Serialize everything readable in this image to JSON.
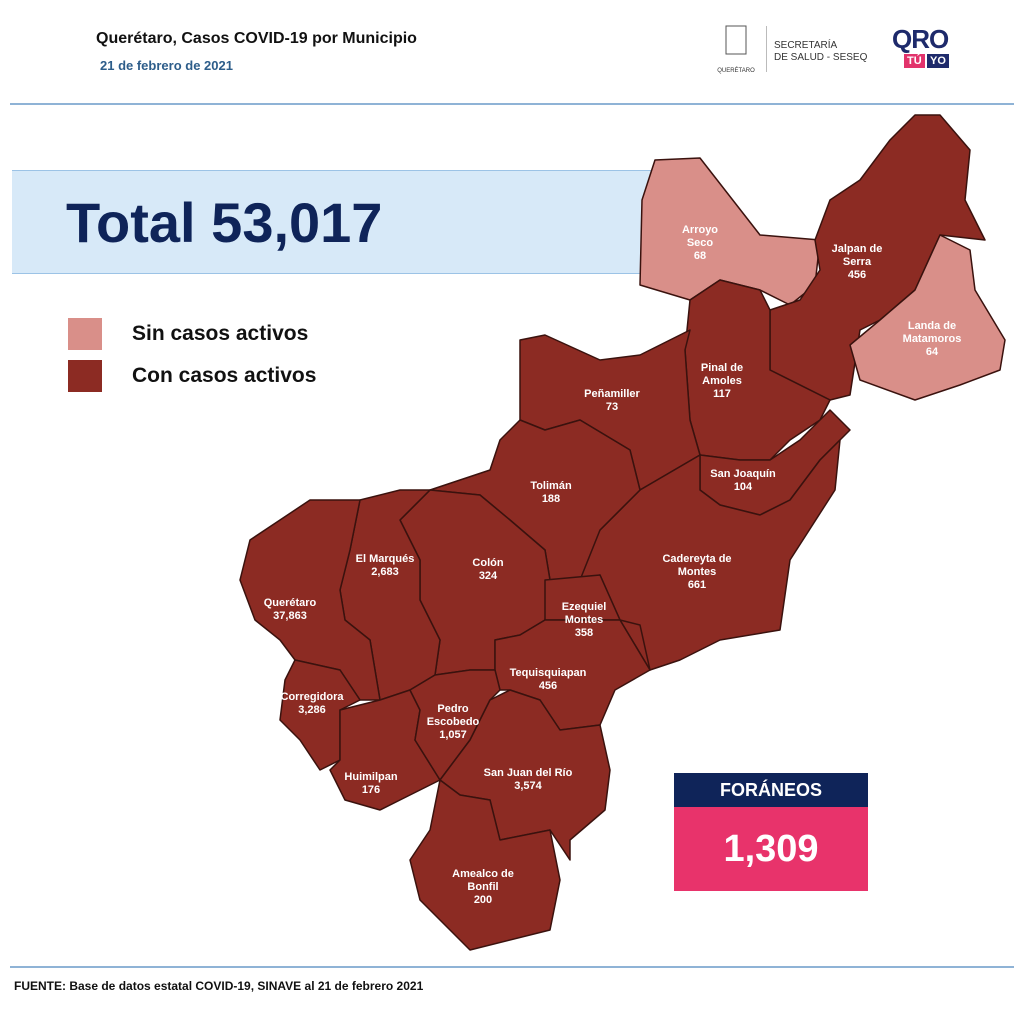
{
  "header": {
    "title": "Querétaro, Casos COVID-19 por Municipio",
    "date": "21 de febrero de 2021",
    "logo_state": "QUERÉTARO",
    "logo_secretaria": [
      "SECRETARÍA",
      "DE SALUD - SESEQ"
    ],
    "logo_qro": "QRO",
    "logo_tu": "TÚ",
    "logo_yo": "YO"
  },
  "total": "Total 53,017",
  "legend": [
    "Sin casos activos",
    "Con casos activos"
  ],
  "municipalities": [
    {
      "name": "Arroyo Seco",
      "value": "68"
    },
    {
      "name": "Jalpan de Serra",
      "value": "456"
    },
    {
      "name": "Landa de Matamoros",
      "value": "64"
    },
    {
      "name": "Pinal de Amoles",
      "value": "117"
    },
    {
      "name": "Peñamiller",
      "value": "73"
    },
    {
      "name": "San Joaquín",
      "value": "104"
    },
    {
      "name": "Tolimán",
      "value": "188"
    },
    {
      "name": "Cadereyta de Montes",
      "value": "661"
    },
    {
      "name": "El Marqués",
      "value": "2,683"
    },
    {
      "name": "Colón",
      "value": "324"
    },
    {
      "name": "Querétaro",
      "value": "37,863"
    },
    {
      "name": "Ezequiel Montes",
      "value": "358"
    },
    {
      "name": "Tequisquiapan",
      "value": "456"
    },
    {
      "name": "Corregidora",
      "value": "3,286"
    },
    {
      "name": "Pedro Escobedo",
      "value": "1,057"
    },
    {
      "name": "Huimilpan",
      "value": "176"
    },
    {
      "name": "San Juan del Río",
      "value": "3,574"
    },
    {
      "name": "Amealco de Bonfil",
      "value": "200"
    }
  ],
  "foraneos": {
    "label": "FORÁNEOS",
    "value": "1,309"
  },
  "footer": "FUENTE: Base de datos estatal COVID-19, SINAVE al 21 de febrero 2021"
}
